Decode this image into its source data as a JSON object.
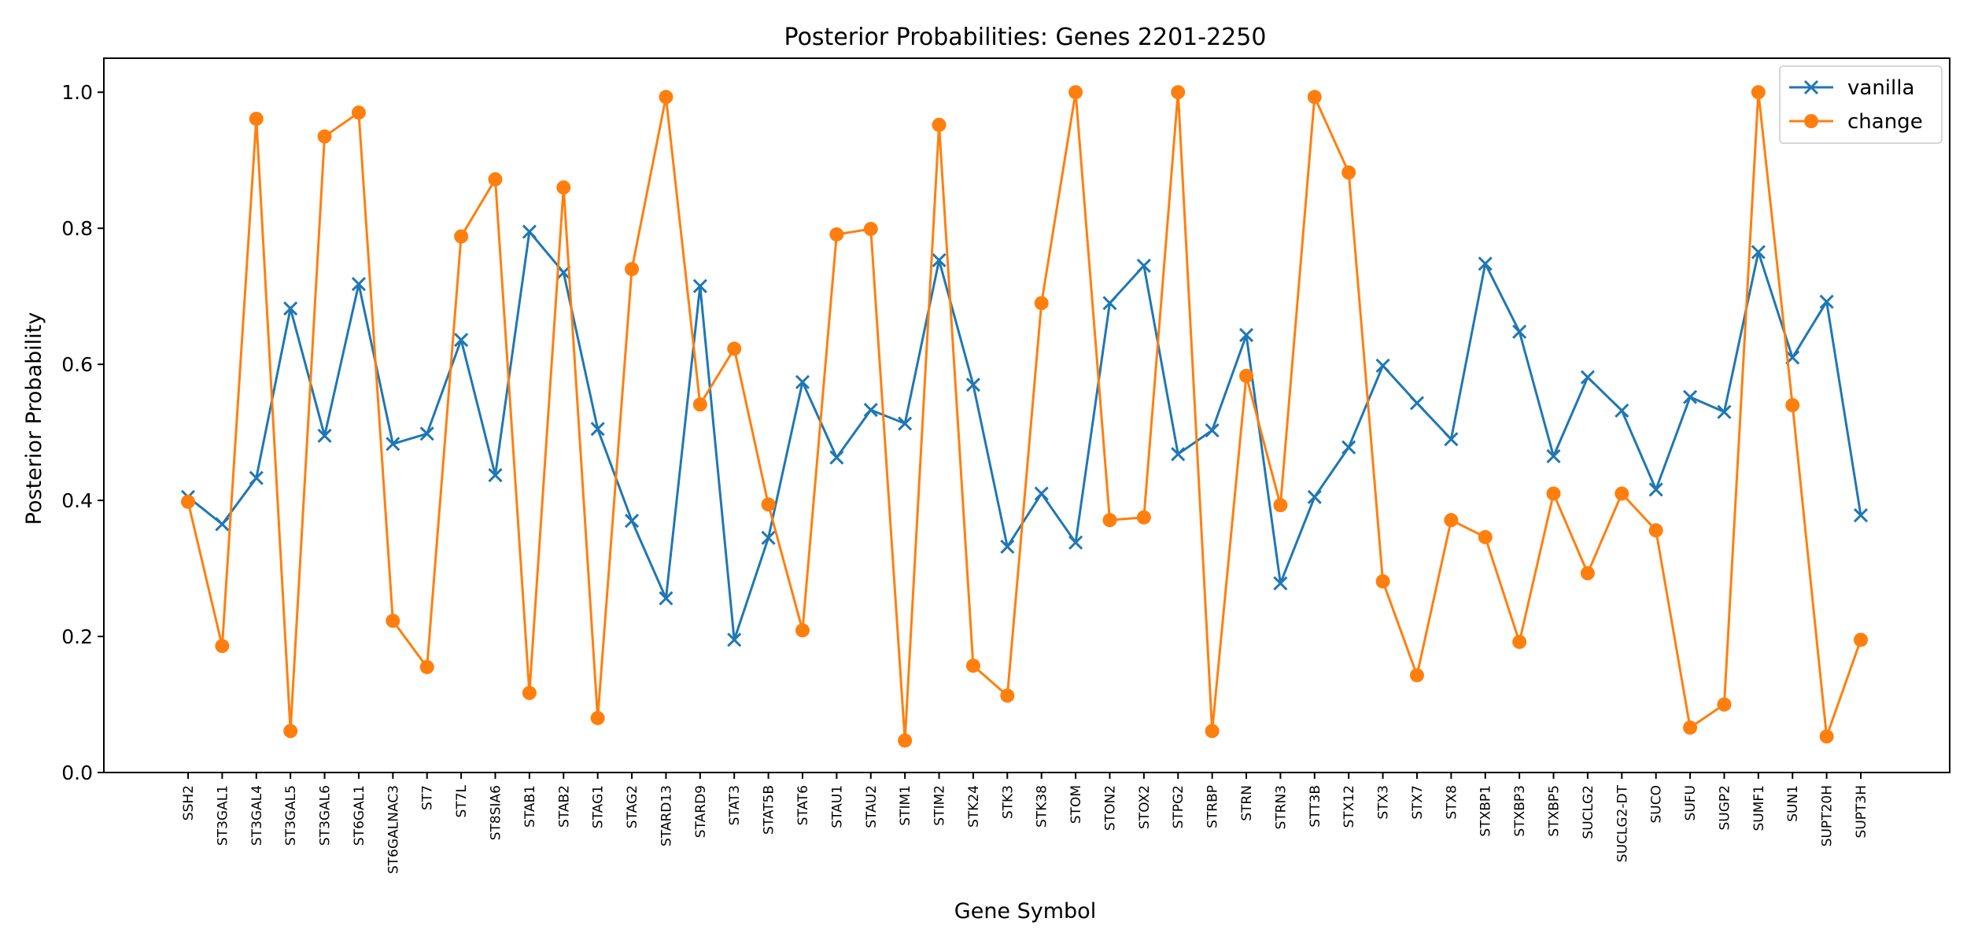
{
  "chart_data": {
    "type": "line",
    "title": "Posterior Probabilities: Genes 2201-2250",
    "xlabel": "Gene Symbol",
    "ylabel": "Posterior Probability",
    "ylim": [
      0,
      1.05
    ],
    "yticks": [
      0.0,
      0.2,
      0.4,
      0.6,
      0.8,
      1.0
    ],
    "ytick_labels": [
      "0.0",
      "0.2",
      "0.4",
      "0.6",
      "0.8",
      "1.0"
    ],
    "grid": false,
    "legend_position": "top-right",
    "categories": [
      "SSH2",
      "ST3GAL1",
      "ST3GAL4",
      "ST3GAL5",
      "ST3GAL6",
      "ST6GAL1",
      "ST6GALNAC3",
      "ST7",
      "ST7L",
      "ST8SIA6",
      "STAB1",
      "STAB2",
      "STAG1",
      "STAG2",
      "STARD13",
      "STARD9",
      "STAT3",
      "STAT5B",
      "STAT6",
      "STAU1",
      "STAU2",
      "STIM1",
      "STIM2",
      "STK24",
      "STK3",
      "STK38",
      "STOM",
      "STON2",
      "STOX2",
      "STPG2",
      "STRBP",
      "STRN",
      "STRN3",
      "STT3B",
      "STX12",
      "STX3",
      "STX7",
      "STX8",
      "STXBP1",
      "STXBP3",
      "STXBP5",
      "SUCLG2",
      "SUCLG2-DT",
      "SUCO",
      "SUFU",
      "SUGP2",
      "SUMF1",
      "SUN1",
      "SUPT20H",
      "SUPT3H"
    ],
    "series": [
      {
        "name": "vanilla",
        "color": "#1f77b4",
        "marker": "x",
        "values": [
          0.405,
          0.365,
          0.433,
          0.682,
          0.495,
          0.718,
          0.483,
          0.498,
          0.636,
          0.437,
          0.795,
          0.735,
          0.505,
          0.37,
          0.256,
          0.715,
          0.195,
          0.345,
          0.574,
          0.463,
          0.533,
          0.513,
          0.753,
          0.57,
          0.332,
          0.41,
          0.338,
          0.69,
          0.745,
          0.468,
          0.503,
          0.643,
          0.278,
          0.405,
          0.478,
          0.598,
          0.543,
          0.49,
          0.748,
          0.648,
          0.465,
          0.581,
          0.532,
          0.416,
          0.552,
          0.53,
          0.765,
          0.61,
          0.692,
          0.378
        ]
      },
      {
        "name": "change",
        "color": "#ff7f0e",
        "marker": "o",
        "values": [
          0.398,
          0.186,
          0.961,
          0.061,
          0.935,
          0.97,
          0.223,
          0.155,
          0.788,
          0.872,
          0.117,
          0.86,
          0.08,
          0.74,
          0.993,
          0.541,
          0.623,
          0.394,
          0.209,
          0.791,
          0.799,
          0.047,
          0.952,
          0.157,
          0.113,
          0.69,
          1.0,
          0.371,
          0.375,
          1.0,
          0.061,
          0.583,
          0.393,
          0.993,
          0.882,
          0.281,
          0.143,
          0.371,
          0.346,
          0.192,
          0.41,
          0.293,
          0.41,
          0.356,
          0.066,
          0.1,
          1.0,
          0.54,
          0.053,
          0.195
        ]
      }
    ]
  }
}
